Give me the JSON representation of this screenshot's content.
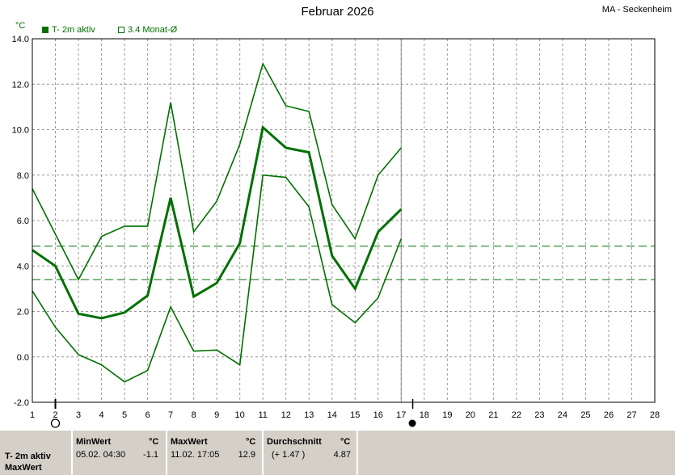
{
  "header": {
    "title": "Februar 2026",
    "station": "MA - Seckenheim",
    "unit": "°C"
  },
  "legend": {
    "series1": "T- 2m aktiv",
    "series2": "3.4 Monat-Ø"
  },
  "colors": {
    "line": "#007000",
    "grid": "#999999",
    "footer_bg": "#d4d0c8"
  },
  "chart_data": {
    "type": "line",
    "title": "Februar 2026",
    "ylabel": "°C",
    "x": [
      1,
      2,
      3,
      4,
      5,
      6,
      7,
      8,
      9,
      10,
      11,
      12,
      13,
      14,
      15,
      16,
      17
    ],
    "xlim": [
      1,
      28
    ],
    "xticks": [
      1,
      2,
      3,
      4,
      5,
      6,
      7,
      8,
      9,
      10,
      11,
      12,
      13,
      14,
      15,
      16,
      17,
      18,
      19,
      20,
      21,
      22,
      23,
      24,
      25,
      26,
      27,
      28
    ],
    "ylim": [
      -2.0,
      14.0
    ],
    "yticks": [
      "-2.0",
      "0.0",
      "2.0",
      "4.0",
      "6.0",
      "8.0",
      "10.0",
      "12.0",
      "14.0"
    ],
    "grid": true,
    "current_day": 17,
    "series": [
      {
        "name": "T- 2m aktiv",
        "role": "mean",
        "values": [
          4.7,
          4.0,
          1.9,
          1.7,
          1.95,
          2.7,
          7.0,
          2.65,
          3.25,
          5.0,
          10.1,
          9.2,
          9.0,
          4.45,
          3.0,
          5.5,
          6.5
        ]
      },
      {
        "role": "max",
        "values": [
          7.4,
          5.4,
          3.4,
          5.3,
          5.75,
          5.75,
          11.2,
          5.5,
          6.85,
          9.35,
          12.9,
          11.05,
          10.8,
          6.7,
          5.2,
          8.0,
          9.2
        ]
      },
      {
        "role": "min",
        "values": [
          2.9,
          1.3,
          0.1,
          -0.35,
          -1.1,
          -0.6,
          2.2,
          0.25,
          0.3,
          -0.35,
          8.0,
          7.9,
          6.6,
          2.3,
          1.5,
          2.6,
          5.2
        ]
      }
    ],
    "reference_lines": [
      {
        "name": "3.4 Monat-Ø",
        "value": 3.4
      },
      {
        "name": "Durchschnitt",
        "value": 4.87
      }
    ],
    "markers": [
      {
        "type": "open-circle",
        "day": 2
      },
      {
        "type": "filled-circle",
        "day": 17.5
      }
    ]
  },
  "footer": {
    "row_label_1": "T- 2m aktiv",
    "row_label_2": "MaxWert",
    "min": {
      "header": "MinWert",
      "unit": "°C",
      "datetime": "05.02.  04:30",
      "value": "-1.1"
    },
    "max": {
      "header": "MaxWert",
      "unit": "°C",
      "datetime": "11.02.  17:05",
      "value": "12.9"
    },
    "avg": {
      "header": "Durchschnitt",
      "unit": "°C",
      "delta": "(+ 1.47 )",
      "value": "4.87"
    }
  }
}
